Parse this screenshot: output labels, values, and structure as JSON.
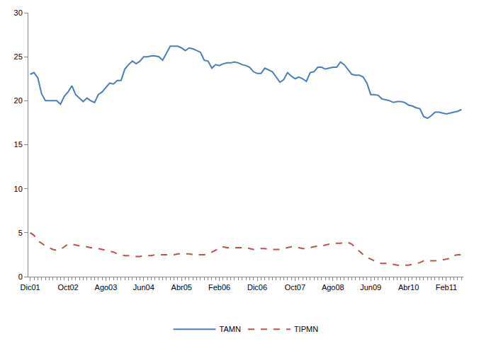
{
  "chart_data": {
    "type": "line",
    "categories": [
      "Dic01",
      null,
      null,
      null,
      null,
      null,
      null,
      null,
      null,
      null,
      "Oct02",
      null,
      null,
      null,
      null,
      null,
      null,
      null,
      null,
      null,
      "Ago03",
      null,
      null,
      null,
      null,
      null,
      null,
      null,
      null,
      null,
      "Jun04",
      null,
      null,
      null,
      null,
      null,
      null,
      null,
      null,
      null,
      "Abr05",
      null,
      null,
      null,
      null,
      null,
      null,
      null,
      null,
      null,
      "Feb06",
      null,
      null,
      null,
      null,
      null,
      null,
      null,
      null,
      null,
      "Dic06",
      null,
      null,
      null,
      null,
      null,
      null,
      null,
      null,
      null,
      "Oct07",
      null,
      null,
      null,
      null,
      null,
      null,
      null,
      null,
      null,
      "Ago08",
      null,
      null,
      null,
      null,
      null,
      null,
      null,
      null,
      null,
      "Jun09",
      null,
      null,
      null,
      null,
      null,
      null,
      null,
      null,
      null,
      "Abr10",
      null,
      null,
      null,
      null,
      null,
      null,
      null,
      null,
      null,
      "Feb11",
      null,
      null,
      null,
      null
    ],
    "series": [
      {
        "name": "TAMN",
        "color": "#4a7ebb",
        "line_style": "solid",
        "values": [
          23.0,
          23.2,
          22.6,
          20.8,
          20.0,
          20.0,
          20.0,
          20.0,
          19.6,
          20.5,
          21.0,
          21.7,
          20.7,
          20.3,
          19.9,
          20.3,
          20.0,
          19.8,
          20.7,
          21.0,
          21.5,
          22.0,
          21.9,
          22.3,
          22.3,
          23.6,
          24.1,
          24.5,
          24.2,
          24.5,
          25.0,
          25.0,
          25.1,
          25.1,
          25.0,
          24.6,
          25.4,
          26.2,
          26.2,
          26.2,
          26.0,
          25.7,
          26.0,
          25.9,
          25.7,
          25.5,
          24.6,
          24.5,
          23.7,
          24.1,
          24.0,
          24.2,
          24.3,
          24.3,
          24.4,
          24.3,
          24.1,
          24.0,
          23.8,
          23.3,
          23.1,
          23.1,
          23.7,
          23.5,
          23.3,
          22.7,
          22.1,
          22.4,
          23.2,
          22.8,
          22.5,
          22.7,
          22.5,
          22.2,
          23.2,
          23.3,
          23.8,
          23.8,
          23.6,
          23.7,
          23.8,
          23.8,
          24.4,
          24.1,
          23.5,
          23.0,
          22.9,
          22.9,
          22.7,
          22.0,
          20.7,
          20.7,
          20.6,
          20.2,
          20.1,
          20.0,
          19.8,
          19.9,
          19.9,
          19.8,
          19.5,
          19.4,
          19.2,
          19.1,
          18.2,
          18.0,
          18.3,
          18.7,
          18.7,
          18.6,
          18.5,
          18.6,
          18.7,
          18.8,
          19.0
        ]
      },
      {
        "name": "TIPMN",
        "color": "#c0504d",
        "line_style": "dash",
        "values": [
          5.0,
          4.7,
          4.1,
          3.8,
          3.5,
          3.3,
          3.1,
          3.0,
          3.1,
          3.4,
          3.7,
          3.7,
          3.6,
          3.5,
          3.4,
          3.4,
          3.3,
          3.3,
          3.2,
          3.1,
          3.0,
          2.9,
          2.8,
          2.6,
          2.5,
          2.4,
          2.4,
          2.3,
          2.3,
          2.3,
          2.4,
          2.4,
          2.4,
          2.5,
          2.5,
          2.5,
          2.5,
          2.5,
          2.5,
          2.6,
          2.6,
          2.6,
          2.6,
          2.5,
          2.5,
          2.5,
          2.5,
          2.6,
          2.8,
          3.0,
          3.3,
          3.4,
          3.3,
          3.3,
          3.3,
          3.3,
          3.3,
          3.3,
          3.2,
          3.1,
          3.2,
          3.2,
          3.2,
          3.1,
          3.1,
          3.1,
          3.1,
          3.2,
          3.3,
          3.4,
          3.4,
          3.3,
          3.2,
          3.2,
          3.3,
          3.4,
          3.5,
          3.5,
          3.6,
          3.7,
          3.8,
          3.8,
          3.8,
          3.9,
          3.9,
          3.7,
          3.3,
          2.9,
          2.5,
          2.2,
          2.0,
          1.8,
          1.6,
          1.5,
          1.5,
          1.4,
          1.4,
          1.3,
          1.3,
          1.3,
          1.3,
          1.4,
          1.5,
          1.6,
          1.8,
          1.8,
          1.8,
          1.8,
          1.9,
          1.9,
          2.0,
          2.1,
          2.4,
          2.5,
          2.5
        ]
      }
    ],
    "ylim": [
      0,
      30
    ],
    "yticks": [
      0,
      5,
      10,
      15,
      20,
      25,
      30
    ],
    "grid": false,
    "legend": "bottom"
  }
}
